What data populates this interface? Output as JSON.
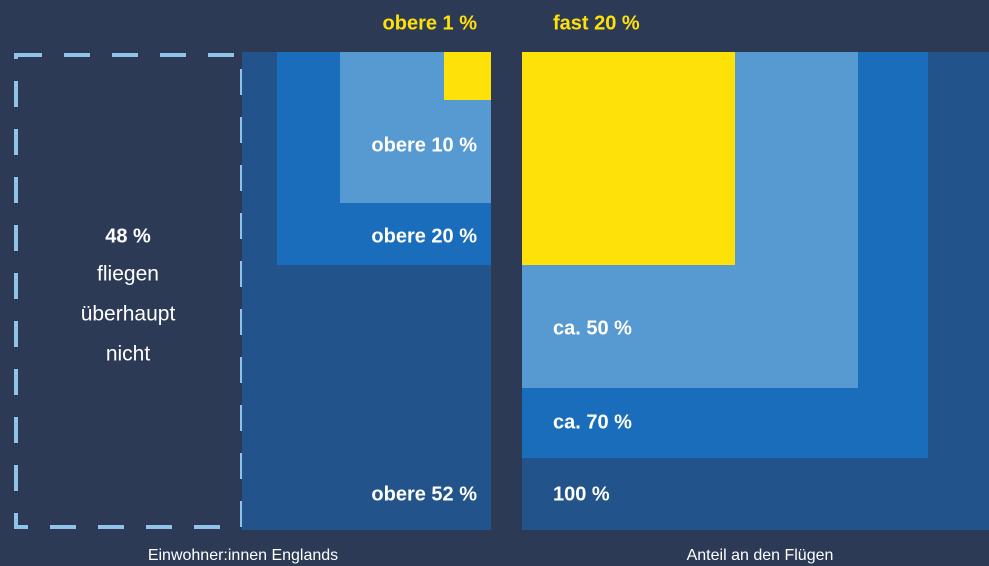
{
  "left": {
    "top_label": "obere 1 %",
    "labels": [
      "obere 10 %",
      "obere 20 %",
      "obere 52 %"
    ],
    "non_flyers": [
      "48 %",
      "fliegen",
      "überhaupt",
      "nicht"
    ],
    "caption": "Einwohner:innen Englands"
  },
  "right": {
    "top_label": "fast 20 %",
    "labels": [
      "ca. 50 %",
      "ca. 70 %",
      "100 %"
    ],
    "caption": "Anteil an den Flügen"
  }
}
